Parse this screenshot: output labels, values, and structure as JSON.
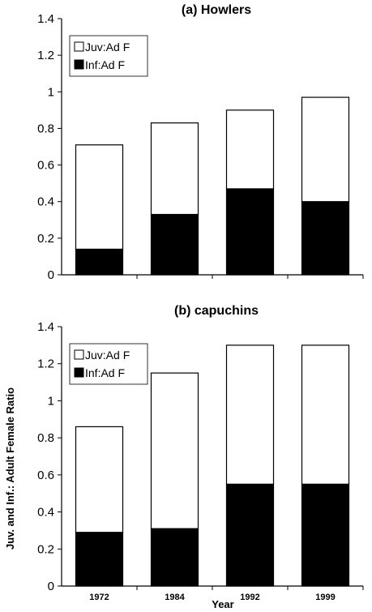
{
  "chart_data": [
    {
      "type": "bar",
      "stacked": true,
      "title": "(a) Howlers",
      "categories": [
        "1972",
        "1984",
        "1992",
        "1999"
      ],
      "ylim": [
        0,
        1.4
      ],
      "yticks": [
        "0",
        "0.2",
        "0.4",
        "0.6",
        "0.8",
        "1",
        "1.2",
        "1.4"
      ],
      "show_xtick_labels": false,
      "legend_position": "top-left",
      "series": [
        {
          "name": "Inf:Ad F",
          "color": "#000000",
          "values": [
            0.14,
            0.33,
            0.47,
            0.4
          ]
        },
        {
          "name": "Juv:Ad F",
          "color": "#ffffff",
          "values": [
            0.57,
            0.5,
            0.43,
            0.57
          ]
        }
      ],
      "xlabel": "",
      "ylabel": ""
    },
    {
      "type": "bar",
      "stacked": true,
      "title": "(b) capuchins",
      "categories": [
        "1972",
        "1984",
        "1992",
        "1999"
      ],
      "ylim": [
        0,
        1.4
      ],
      "yticks": [
        "0",
        "0.2",
        "0.4",
        "0.6",
        "0.8",
        "1",
        "1.2",
        "1.4"
      ],
      "show_xtick_labels": true,
      "legend_position": "top-left",
      "series": [
        {
          "name": "Inf:Ad F",
          "color": "#000000",
          "values": [
            0.29,
            0.31,
            0.55,
            0.55
          ]
        },
        {
          "name": "Juv:Ad F",
          "color": "#ffffff",
          "values": [
            0.57,
            0.84,
            0.75,
            0.75
          ]
        }
      ],
      "xlabel": "Year",
      "ylabel": "Juv. and Inf.: Adult Female Ratio"
    }
  ]
}
